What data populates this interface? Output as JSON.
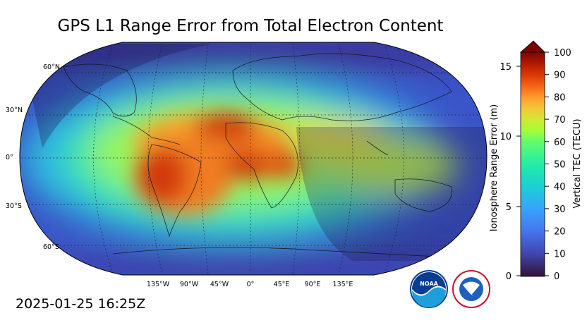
{
  "title": "GPS L1 Range Error from Total Electron Content",
  "timestamp": "2025-01-25 16:25Z",
  "map": {
    "projection": "robinson",
    "graticule": "dashed",
    "lat_labels": [
      "60°N",
      "30°N",
      "0°",
      "30°S",
      "60°S"
    ],
    "lon_labels": [
      "135°W",
      "90°W",
      "45°W",
      "0°",
      "45°E",
      "90°E",
      "135°E"
    ],
    "night_side": "shaded",
    "hotspot_colors": [
      "#7a0403",
      "#d23105",
      "#fb7e21",
      "#d2e935",
      "#4df67e",
      "#25c1e5",
      "#4560d7",
      "#30123b"
    ]
  },
  "colorbar": {
    "left_axis_label": "Ionosphere Range Error (m)",
    "left_ticks": [
      "0",
      "5",
      "10",
      "15"
    ],
    "right_axis_label": "Vertical TEC (TECU)",
    "right_ticks": [
      "0",
      "10",
      "20",
      "30",
      "40",
      "50",
      "60",
      "70",
      "80",
      "90",
      "100"
    ],
    "colormap": "turbo",
    "extend": "max"
  },
  "logos": {
    "noaa": "noaa-logo",
    "nws": "national-weather-service-logo"
  }
}
